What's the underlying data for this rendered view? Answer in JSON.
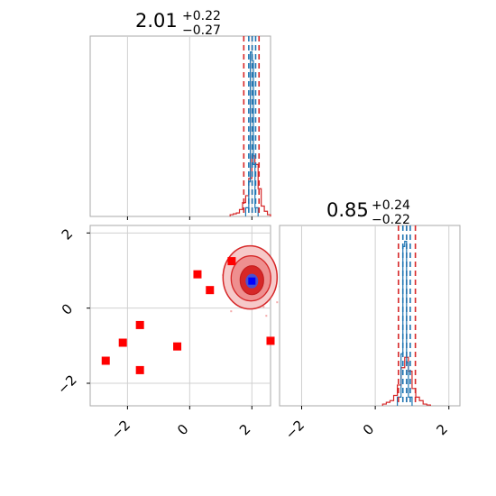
{
  "chart_data": [
    {
      "type": "histogram",
      "panel": "top-left",
      "title": {
        "value": "2.01",
        "plus": "+0.22",
        "minus": "−0.27"
      },
      "xlim": [
        -3.2,
        2.6
      ],
      "xticks": [
        -2,
        0,
        2
      ],
      "grid": true,
      "series": [
        {
          "color": "#d62728",
          "bins": [
            1.3,
            1.4,
            1.5,
            1.6,
            1.7,
            1.8,
            1.9,
            2.0,
            2.1,
            2.2,
            2.3,
            2.4,
            2.5,
            2.6
          ],
          "heights": [
            0.01,
            0.015,
            0.02,
            0.04,
            0.08,
            0.12,
            0.22,
            0.35,
            0.3,
            0.16,
            0.06,
            0.03,
            0.01
          ]
        },
        {
          "color": "#1f77b4",
          "bins": [
            1.8,
            1.9,
            1.95,
            2.0,
            2.05,
            2.1,
            2.2
          ],
          "heights": [
            0.05,
            0.2,
            0.95,
            0.9,
            0.3,
            0.05
          ]
        }
      ],
      "quantile_lines": [
        {
          "color": "#d62728",
          "x": [
            1.74,
            2.01,
            2.23
          ]
        },
        {
          "color": "#1f77b4",
          "x": [
            1.9,
            2.01,
            2.12
          ]
        }
      ]
    },
    {
      "type": "scatter-contour",
      "panel": "bottom-left",
      "xlim": [
        -3.2,
        2.6
      ],
      "ylim": [
        -2.6,
        2.2
      ],
      "xticks": [
        -2,
        0,
        2
      ],
      "yticks": [
        -2,
        0,
        2
      ],
      "grid": true,
      "points": [
        {
          "x": 1.35,
          "y": 1.25
        },
        {
          "x": 0.25,
          "y": 0.9
        },
        {
          "x": 0.65,
          "y": 0.48
        },
        {
          "x": -1.6,
          "y": -0.45
        },
        {
          "x": -2.15,
          "y": -0.92
        },
        {
          "x": -0.4,
          "y": -1.02
        },
        {
          "x": -2.7,
          "y": -1.4
        },
        {
          "x": -1.6,
          "y": -1.65
        },
        {
          "x": 2.6,
          "y": -0.87
        }
      ],
      "point_color": "#ff0000",
      "contour_center": {
        "x": 2.0,
        "y": 0.72
      },
      "center_color": "#0000ff"
    },
    {
      "type": "histogram",
      "panel": "bottom-right",
      "title": {
        "value": "0.85",
        "plus": "+0.24",
        "minus": "−0.22"
      },
      "xlim": [
        -2.6,
        2.3
      ],
      "xticks": [
        -2,
        0,
        2
      ],
      "grid": true,
      "series": [
        {
          "color": "#d62728",
          "bins": [
            0.2,
            0.3,
            0.4,
            0.5,
            0.6,
            0.7,
            0.8,
            0.9,
            1.0,
            1.1,
            1.2,
            1.3,
            1.4,
            1.5
          ],
          "heights": [
            0.01,
            0.02,
            0.03,
            0.06,
            0.12,
            0.22,
            0.28,
            0.2,
            0.1,
            0.05,
            0.03,
            0.01,
            0.005
          ]
        },
        {
          "color": "#1f77b4",
          "bins": [
            0.6,
            0.7,
            0.75,
            0.8,
            0.85,
            0.9,
            1.0
          ],
          "heights": [
            0.05,
            0.3,
            0.92,
            0.95,
            0.25,
            0.05
          ]
        }
      ],
      "quantile_lines": [
        {
          "color": "#d62728",
          "x": [
            0.63,
            0.85,
            1.09
          ]
        },
        {
          "color": "#1f77b4",
          "x": [
            0.75,
            0.85,
            0.95
          ]
        }
      ]
    }
  ]
}
